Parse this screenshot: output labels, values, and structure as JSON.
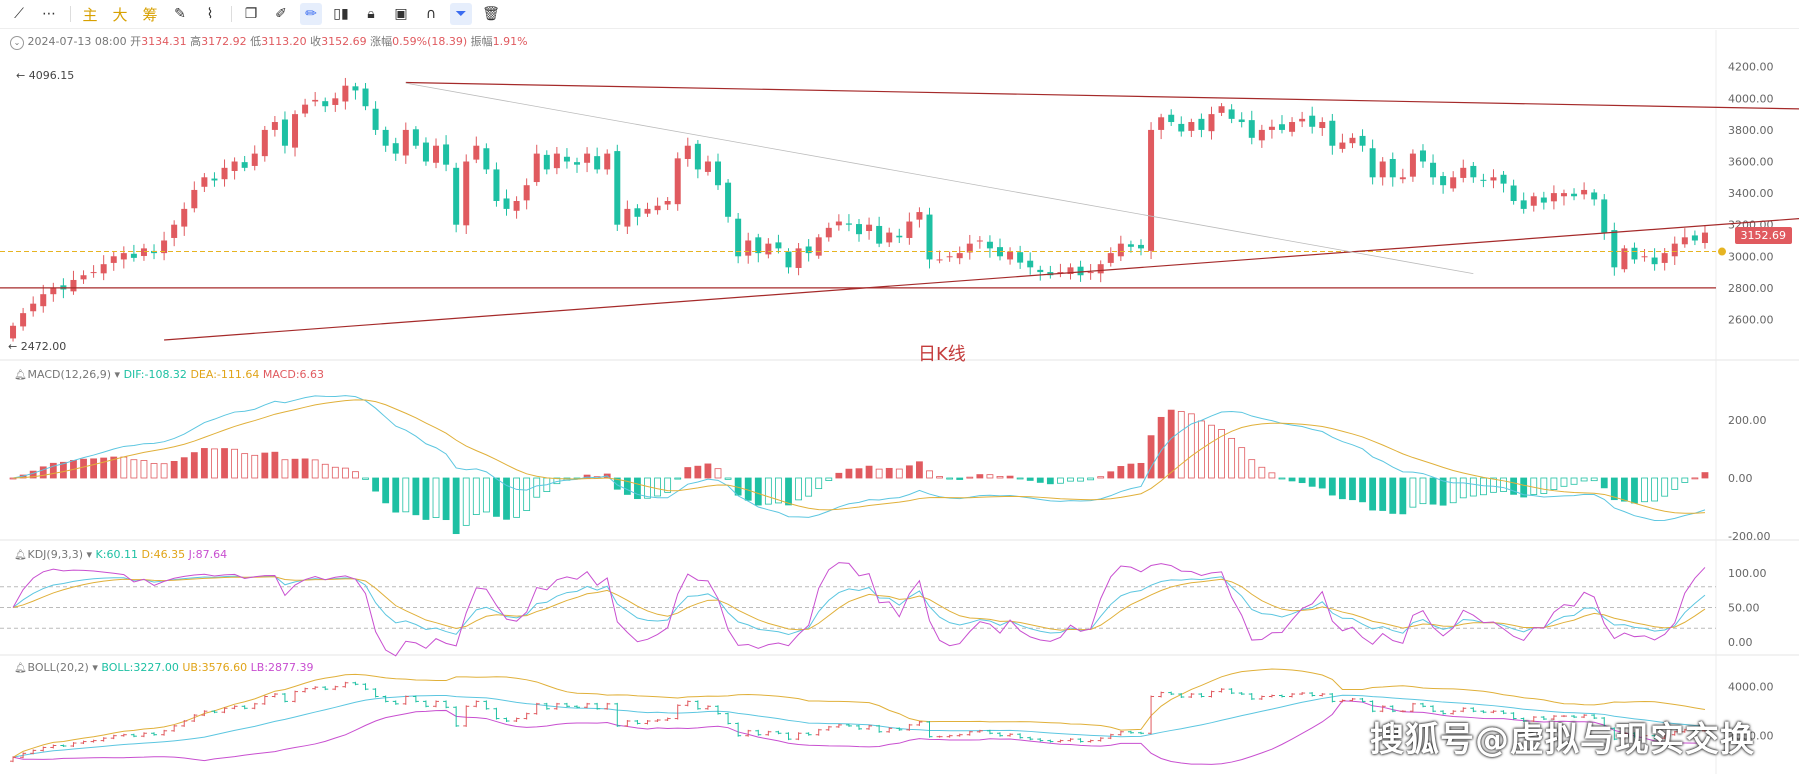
{
  "toolbar": {
    "main_label": "主",
    "large_label": "大",
    "chip_label": "筹"
  },
  "ohlc_bar": {
    "date": "2024-07-13 08:00",
    "open_label": "开",
    "open": "3134.31",
    "high_label": "高",
    "high": "3172.92",
    "low_label": "低",
    "low": "3113.20",
    "close_label": "收",
    "close": "3152.69",
    "change_label": "涨幅",
    "change": "0.59%(18.39)",
    "amp_label": "振幅",
    "amp": "1.91%"
  },
  "price_annotations": {
    "high_mark": "← 4096.15",
    "low_mark": "← 2472.00",
    "current_price": "3152.69",
    "chart_label": "日K线"
  },
  "macd_legend": {
    "name": "MACD(12,26,9)",
    "dif": "DIF:-108.32",
    "dea": "DEA:-111.64",
    "macd": "MACD:6.63"
  },
  "kdj_legend": {
    "name": "KDJ(9,3,3)",
    "k": "K:60.11",
    "d": "D:46.35",
    "j": "J:87.64"
  },
  "boll_legend": {
    "name": "BOLL(20,2)",
    "boll": "BOLL:3227.00",
    "ub": "UB:3576.60",
    "lb": "LB:2877.39"
  },
  "watermark": "搜狐号@虚拟与现实交换",
  "colors": {
    "up": "#e05a5f",
    "down": "#1ec0a3",
    "trendline": "#a52a2a",
    "dif": "#5cc6e0",
    "dea": "#e0b03a",
    "j": "#c84fd0"
  },
  "chart_data": {
    "type": "candlestick",
    "price_axis": {
      "ticks": [
        2600,
        2800,
        3000,
        3200,
        3400,
        3600,
        3800,
        4000,
        4200
      ],
      "range": [
        2470,
        4230
      ]
    },
    "current_price": 3152.69,
    "high": 4096.15,
    "low": 2472.0,
    "support_level": 2800,
    "trendlines": [
      {
        "kind": "upper",
        "from_index": 39,
        "to_index": 184,
        "from_price": 4100,
        "to_price": 3925
      },
      {
        "kind": "lower",
        "from_index": 15,
        "to_index": 184,
        "from_price": 2470,
        "to_price": 3270
      },
      {
        "kind": "thin",
        "from_index": 39,
        "to_index": 145,
        "from_price": 4096,
        "to_price": 2890
      }
    ],
    "closes": [
      2560,
      2640,
      2700,
      2760,
      2800,
      2790,
      2850,
      2880,
      2900,
      2950,
      3000,
      3020,
      2990,
      3050,
      3020,
      3100,
      3200,
      3300,
      3420,
      3500,
      3480,
      3560,
      3600,
      3560,
      3650,
      3800,
      3850,
      3700,
      3900,
      3960,
      3990,
      3950,
      4000,
      4080,
      4050,
      3950,
      3800,
      3700,
      3650,
      3800,
      3700,
      3600,
      3700,
      3580,
      3200,
      3600,
      3700,
      3550,
      3350,
      3300,
      3350,
      3450,
      3650,
      3550,
      3650,
      3600,
      3580,
      3650,
      3550,
      3650,
      3200,
      3300,
      3250,
      3300,
      3320,
      3350,
      3620,
      3700,
      3550,
      3600,
      3450,
      3250,
      3000,
      3100,
      3020,
      3080,
      3050,
      2930,
      3050,
      3020,
      3120,
      3180,
      3220,
      3200,
      3140,
      3200,
      3080,
      3150,
      3120,
      3220,
      3280,
      2980,
      2980,
      3000,
      3020,
      3080,
      3100,
      3050,
      3000,
      3030,
      2960,
      2930,
      2900,
      2880,
      2900,
      2930,
      2880,
      2900,
      2950,
      3020,
      3080,
      3060,
      3050,
      3800,
      3880,
      3850,
      3790,
      3850,
      3800,
      3900,
      3950,
      3870,
      3850,
      3750,
      3800,
      3820,
      3800,
      3850,
      3870,
      3820,
      3850,
      3700,
      3720,
      3750,
      3700,
      3500,
      3600,
      3500,
      3500,
      3650,
      3600,
      3500,
      3450,
      3500,
      3560,
      3500,
      3480,
      3500,
      3460,
      3350,
      3300,
      3380,
      3340,
      3400,
      3400,
      3380,
      3420,
      3360,
      3150,
      2930,
      3050,
      2980,
      3000,
      2950,
      3020,
      3080,
      3120,
      3100,
      3150
    ],
    "macd_axis": {
      "ticks": [
        -200,
        0,
        200
      ]
    },
    "kdj_axis": {
      "ticks": [
        0,
        50,
        100
      ],
      "dashed": [
        20,
        50,
        80
      ]
    },
    "boll_axis": {
      "ticks": [
        3000,
        4000
      ]
    }
  }
}
